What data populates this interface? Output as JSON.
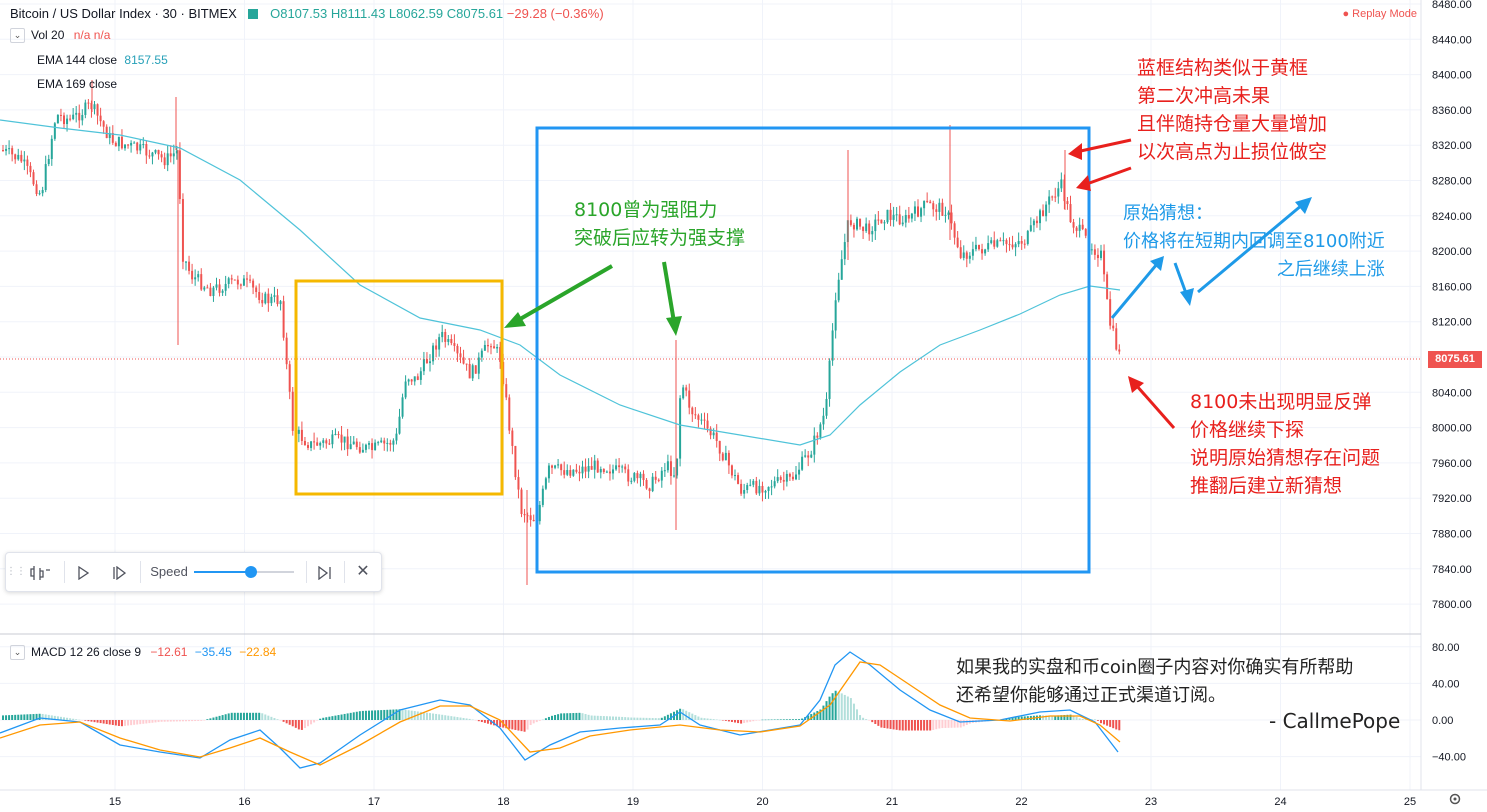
{
  "header": {
    "symbol": "Bitcoin / US Dollar Index · 30 · BITMEX",
    "open": "O8107.53",
    "high": "H8111.43",
    "low": "L8062.59",
    "close": "C8075.61",
    "change": "−29.28 (−0.36%)",
    "replay": "● Replay Mode",
    "vol_label": "Vol 20",
    "vol_values": "n/a  n/a",
    "ema1_label": "EMA 144 close",
    "ema1_value": "8157.55",
    "ema2_label": "EMA 169 close"
  },
  "macd": {
    "label": "MACD 12 26 close 9",
    "hist": "−12.61",
    "macd": "−35.45",
    "signal": "−22.84"
  },
  "price_axis": [
    "8480.00",
    "8440.00",
    "8400.00",
    "8360.00",
    "8320.00",
    "8280.00",
    "8240.00",
    "8200.00",
    "8160.00",
    "8120.00",
    "8080.00",
    "8040.00",
    "8000.00",
    "7960.00",
    "7920.00",
    "7880.00",
    "7840.00",
    "7800.00"
  ],
  "macd_axis": [
    "80.00",
    "40.00",
    "0.00",
    "−40.00"
  ],
  "current_price": "8075.61",
  "time_axis": [
    "15",
    "16",
    "17",
    "18",
    "19",
    "20",
    "21",
    "22",
    "23",
    "24",
    "25"
  ],
  "controls": {
    "speed_label": "Speed"
  },
  "annotations": {
    "red_top": [
      "蓝框结构类似于黄框",
      "第二次冲高未果",
      "且伴随持仓量大量增加",
      "以次高点为止损位做空"
    ],
    "green": [
      "8100曾为强阻力",
      "突破后应转为强支撑"
    ],
    "blue": [
      "原始猜想：",
      "价格将在短期内回调至8100附近",
      "之后继续上涨"
    ],
    "red_bottom": [
      "8100未出现明显反弹",
      "价格继续下探",
      "说明原始猜想存在问题",
      "推翻后建立新猜想"
    ],
    "footer": [
      "如果我的实盘和币coin圈子内容对你确实有所帮助",
      "还希望你能够通过正式渠道订阅。"
    ],
    "signature": "- CallmePope"
  },
  "colors": {
    "up": "#26a69a",
    "down": "#ef5350",
    "ema": "#4fc3d9",
    "macd_line": "#2196f3",
    "signal_line": "#ff9800",
    "yellow_box": "#f5b800",
    "blue_box": "#2196f3"
  }
}
